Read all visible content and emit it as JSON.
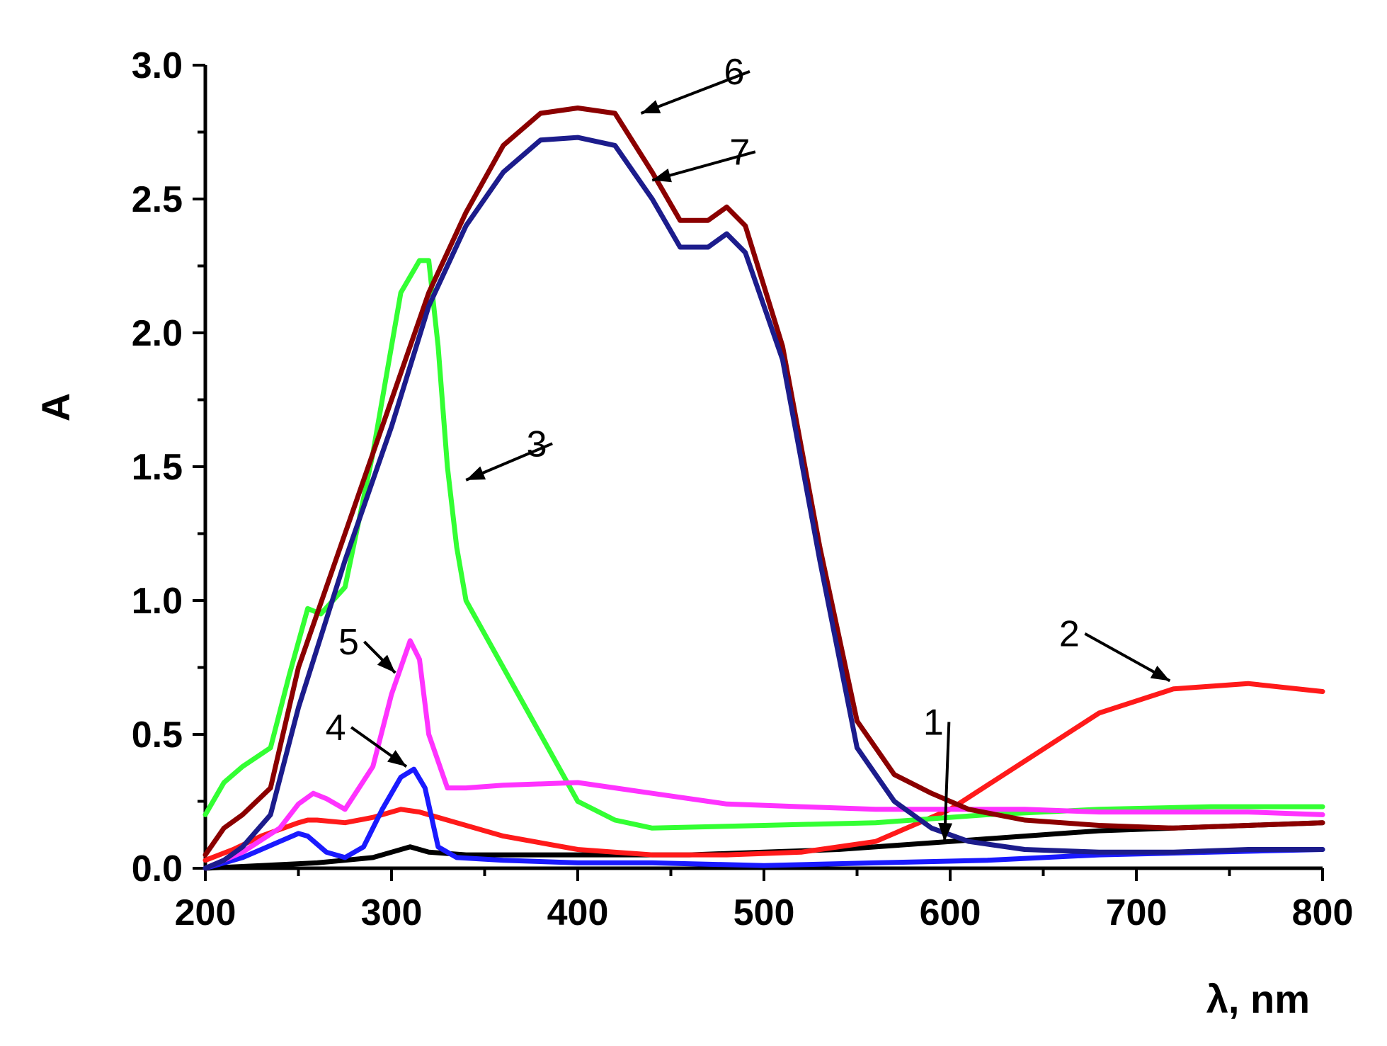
{
  "chart_data": {
    "type": "line",
    "title": "",
    "xlabel": "λ, nm",
    "ylabel": "A",
    "xlim": [
      200,
      800
    ],
    "ylim": [
      0.0,
      3.0
    ],
    "x_ticks": [
      "200",
      "300",
      "400",
      "500",
      "600",
      "700",
      "800"
    ],
    "y_ticks": [
      "0.0",
      "0.5",
      "1.0",
      "1.5",
      "2.0",
      "2.5",
      "3.0"
    ],
    "grid": false,
    "series": [
      {
        "name": "1",
        "color": "#000000",
        "x": [
          200,
          230,
          260,
          290,
          300,
          310,
          320,
          340,
          380,
          420,
          460,
          500,
          540,
          580,
          600,
          640,
          680,
          720,
          760,
          800
        ],
        "y": [
          0.0,
          0.01,
          0.02,
          0.04,
          0.06,
          0.08,
          0.06,
          0.05,
          0.05,
          0.05,
          0.05,
          0.06,
          0.07,
          0.09,
          0.1,
          0.12,
          0.14,
          0.15,
          0.16,
          0.17
        ]
      },
      {
        "name": "2",
        "color": "#ff1a1a",
        "x": [
          200,
          215,
          230,
          250,
          255,
          260,
          275,
          290,
          305,
          315,
          330,
          360,
          400,
          440,
          480,
          520,
          560,
          600,
          640,
          680,
          720,
          760,
          800
        ],
        "y": [
          0.03,
          0.07,
          0.12,
          0.17,
          0.18,
          0.18,
          0.17,
          0.19,
          0.22,
          0.21,
          0.18,
          0.12,
          0.07,
          0.05,
          0.05,
          0.06,
          0.1,
          0.22,
          0.4,
          0.58,
          0.67,
          0.69,
          0.66
        ]
      },
      {
        "name": "3",
        "color": "#33ff33",
        "x": [
          200,
          210,
          220,
          235,
          245,
          255,
          262,
          275,
          290,
          305,
          315,
          320,
          325,
          330,
          335,
          340,
          360,
          380,
          400,
          420,
          440,
          500,
          560,
          620,
          680,
          740,
          800
        ],
        "y": [
          0.2,
          0.32,
          0.38,
          0.45,
          0.72,
          0.97,
          0.95,
          1.05,
          1.55,
          2.15,
          2.27,
          2.27,
          1.95,
          1.5,
          1.2,
          1.0,
          0.75,
          0.5,
          0.25,
          0.18,
          0.15,
          0.16,
          0.17,
          0.2,
          0.22,
          0.23,
          0.23
        ]
      },
      {
        "name": "4",
        "color": "#1a1aff",
        "x": [
          200,
          220,
          240,
          250,
          255,
          265,
          275,
          285,
          295,
          305,
          312,
          318,
          325,
          335,
          360,
          400,
          440,
          500,
          560,
          620,
          680,
          740,
          800
        ],
        "y": [
          0.0,
          0.04,
          0.1,
          0.13,
          0.12,
          0.06,
          0.04,
          0.08,
          0.22,
          0.34,
          0.37,
          0.3,
          0.08,
          0.04,
          0.03,
          0.02,
          0.02,
          0.01,
          0.02,
          0.03,
          0.05,
          0.06,
          0.07
        ]
      },
      {
        "name": "5",
        "color": "#ff33ff",
        "x": [
          200,
          220,
          240,
          250,
          258,
          265,
          275,
          290,
          300,
          310,
          315,
          320,
          330,
          340,
          360,
          400,
          440,
          480,
          520,
          560,
          600,
          640,
          680,
          720,
          760,
          800
        ],
        "y": [
          0.0,
          0.06,
          0.15,
          0.24,
          0.28,
          0.26,
          0.22,
          0.38,
          0.65,
          0.85,
          0.78,
          0.5,
          0.3,
          0.3,
          0.31,
          0.32,
          0.28,
          0.24,
          0.23,
          0.22,
          0.22,
          0.22,
          0.21,
          0.21,
          0.21,
          0.2
        ]
      },
      {
        "name": "6",
        "color": "#8b0000",
        "x": [
          200,
          210,
          220,
          235,
          250,
          275,
          300,
          320,
          340,
          360,
          380,
          400,
          420,
          440,
          455,
          470,
          480,
          490,
          510,
          530,
          550,
          570,
          590,
          610,
          640,
          680,
          720,
          760,
          800
        ],
        "y": [
          0.05,
          0.15,
          0.2,
          0.3,
          0.75,
          1.25,
          1.75,
          2.15,
          2.45,
          2.7,
          2.82,
          2.84,
          2.82,
          2.6,
          2.42,
          2.42,
          2.47,
          2.4,
          1.95,
          1.2,
          0.55,
          0.35,
          0.28,
          0.22,
          0.18,
          0.16,
          0.15,
          0.16,
          0.17
        ]
      },
      {
        "name": "7",
        "color": "#1c1c8c",
        "x": [
          200,
          210,
          220,
          235,
          250,
          275,
          300,
          320,
          340,
          360,
          380,
          400,
          420,
          440,
          455,
          470,
          480,
          490,
          510,
          530,
          550,
          570,
          590,
          610,
          640,
          680,
          720,
          760,
          800
        ],
        "y": [
          0.0,
          0.03,
          0.08,
          0.2,
          0.6,
          1.15,
          1.65,
          2.1,
          2.4,
          2.6,
          2.72,
          2.73,
          2.7,
          2.5,
          2.32,
          2.32,
          2.37,
          2.3,
          1.9,
          1.15,
          0.45,
          0.25,
          0.15,
          0.1,
          0.07,
          0.06,
          0.06,
          0.07,
          0.07
        ]
      }
    ],
    "annotations": [
      {
        "text": "1",
        "tip_x": 597,
        "tip_y": 0.1,
        "label_x": 591,
        "label_y": 0.52
      },
      {
        "text": "2",
        "tip_x": 718,
        "tip_y": 0.7,
        "label_x": 664,
        "label_y": 0.85
      },
      {
        "text": "3",
        "tip_x": 340,
        "tip_y": 1.45,
        "label_x": 378,
        "label_y": 1.56
      },
      {
        "text": "4",
        "tip_x": 308,
        "tip_y": 0.38,
        "label_x": 270,
        "label_y": 0.5
      },
      {
        "text": "5",
        "tip_x": 302,
        "tip_y": 0.73,
        "label_x": 277,
        "label_y": 0.82
      },
      {
        "text": "6",
        "tip_x": 434,
        "tip_y": 2.82,
        "label_x": 484,
        "label_y": 2.95
      },
      {
        "text": "7",
        "tip_x": 440,
        "tip_y": 2.57,
        "label_x": 487,
        "label_y": 2.65
      }
    ]
  }
}
